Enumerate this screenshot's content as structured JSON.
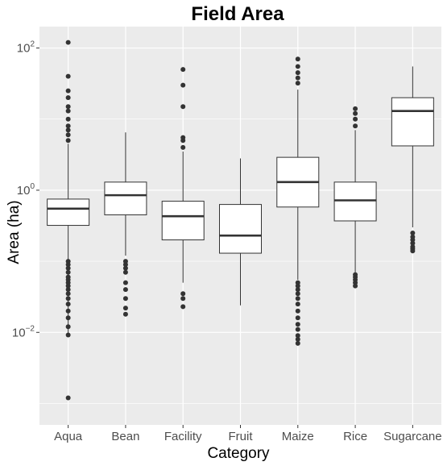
{
  "chart_data": {
    "type": "boxplot",
    "title": "Field Area",
    "xlabel": "Category",
    "ylabel": "Area (ha)",
    "y_scale": "log10",
    "ylim": [
      0.0005,
      200
    ],
    "y_ticks": [
      {
        "value": 0.01,
        "base": "10",
        "exp": "−2"
      },
      {
        "value": 1,
        "base": "10",
        "exp": "0"
      },
      {
        "value": 100,
        "base": "10",
        "exp": "2"
      }
    ],
    "grid": true,
    "background": "#ebebeb",
    "grid_color": "#ffffff",
    "categories": [
      "Aqua",
      "Bean",
      "Facility",
      "Fruit",
      "Maize",
      "Rice",
      "Sugarcane"
    ],
    "boxes": [
      {
        "category": "Aqua",
        "whisker_low": 0.009,
        "q1": 0.32,
        "median": 0.55,
        "q3": 0.75,
        "whisker_high": 4.5,
        "outliers_high": [
          5,
          6,
          7,
          8,
          10,
          13,
          15,
          20,
          25,
          40,
          120
        ],
        "outliers_low": [
          0.0012,
          0.0092,
          0.012,
          0.016,
          0.02,
          0.025,
          0.03,
          0.035,
          0.04,
          0.045,
          0.05,
          0.055,
          0.06,
          0.07,
          0.08,
          0.09,
          0.1
        ]
      },
      {
        "category": "Bean",
        "whisker_low": 0.12,
        "q1": 0.45,
        "median": 0.85,
        "q3": 1.3,
        "whisker_high": 6.5,
        "outliers_high": [],
        "outliers_low": [
          0.018,
          0.022,
          0.03,
          0.04,
          0.05,
          0.07,
          0.08,
          0.09,
          0.1
        ]
      },
      {
        "category": "Facility",
        "whisker_low": 0.05,
        "q1": 0.2,
        "median": 0.43,
        "q3": 0.7,
        "whisker_high": 3.5,
        "outliers_high": [
          4,
          5,
          5.5,
          15,
          30,
          50
        ],
        "outliers_low": [
          0.023,
          0.03,
          0.035
        ]
      },
      {
        "category": "Fruit",
        "whisker_low": 0.024,
        "q1": 0.13,
        "median": 0.23,
        "q3": 0.63,
        "whisker_high": 2.8,
        "outliers_high": [],
        "outliers_low": []
      },
      {
        "category": "Maize",
        "whisker_low": 0.055,
        "q1": 0.58,
        "median": 1.3,
        "q3": 2.9,
        "whisker_high": 26,
        "outliers_high": [
          32,
          38,
          45,
          55,
          70
        ],
        "outliers_low": [
          0.007,
          0.008,
          0.009,
          0.011,
          0.013,
          0.016,
          0.02,
          0.025,
          0.03,
          0.035,
          0.04,
          0.045,
          0.05
        ]
      },
      {
        "category": "Rice",
        "whisker_low": 0.07,
        "q1": 0.37,
        "median": 0.72,
        "q3": 1.3,
        "whisker_high": 7,
        "outliers_high": [
          8,
          10,
          12,
          14
        ],
        "outliers_low": [
          0.045,
          0.05,
          0.055,
          0.06,
          0.065
        ]
      },
      {
        "category": "Sugarcane",
        "whisker_low": 0.3,
        "q1": 4.2,
        "median": 13,
        "q3": 20,
        "whisker_high": 55,
        "outliers_high": [],
        "outliers_low": [
          0.14,
          0.15,
          0.16,
          0.18,
          0.2,
          0.22,
          0.25
        ]
      }
    ]
  }
}
